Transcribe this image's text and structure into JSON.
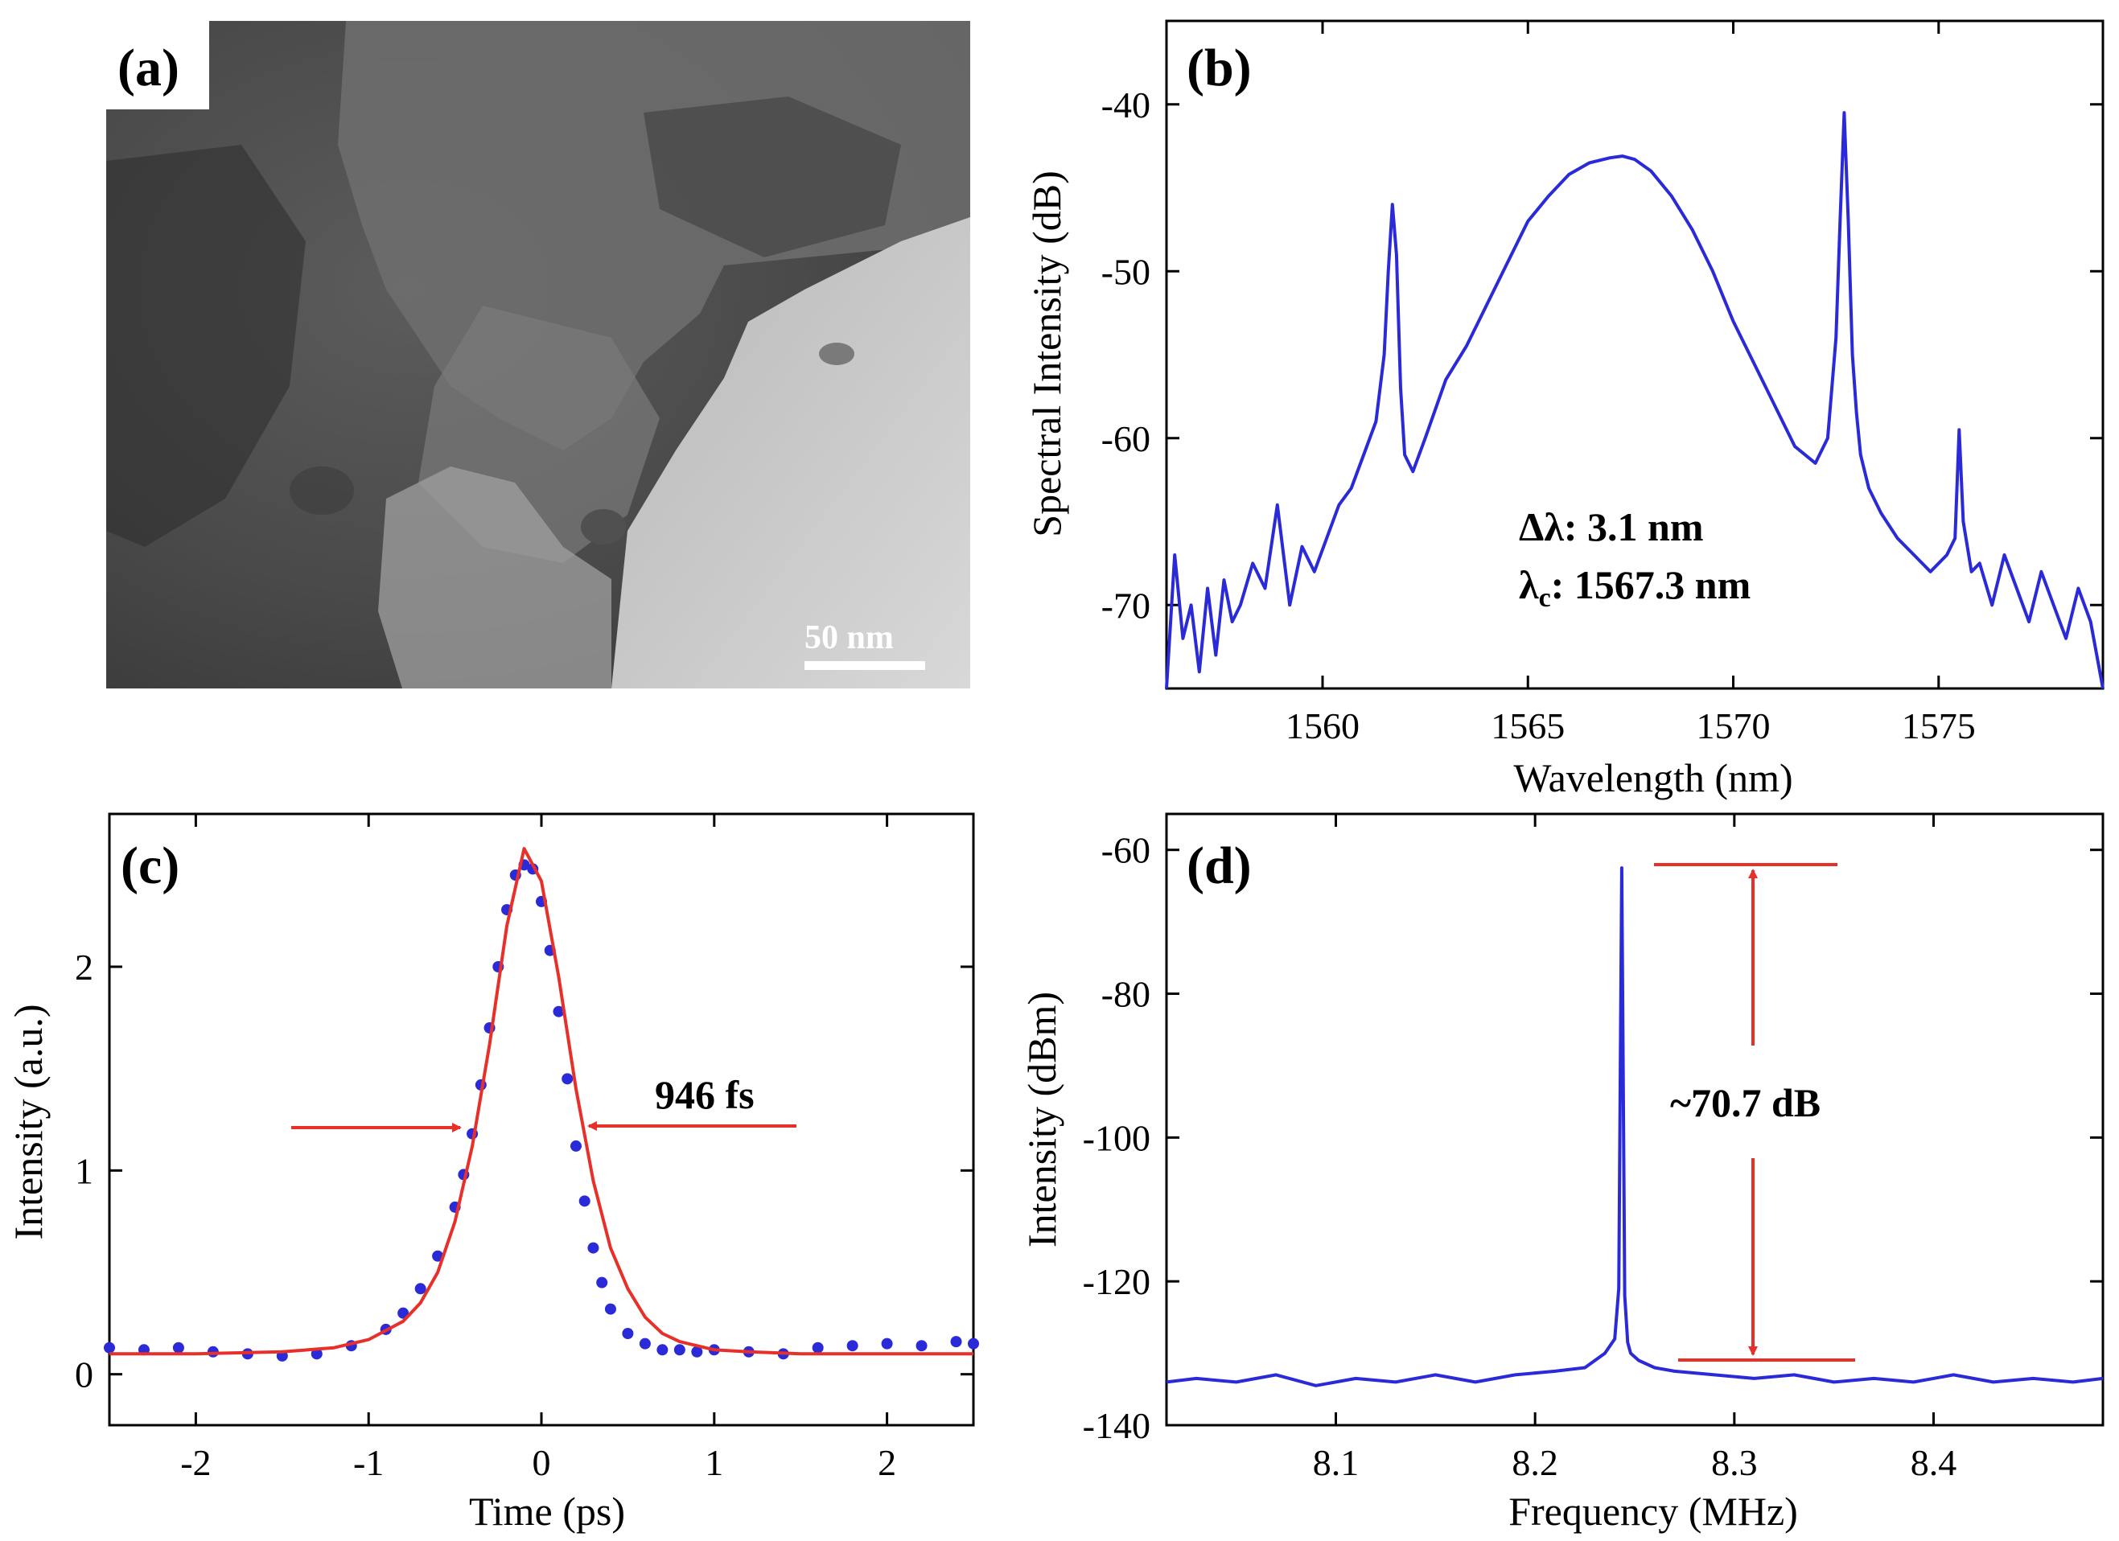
{
  "panels": {
    "a": {
      "label": "(a)",
      "scale_bar_label": "50 nm"
    },
    "b": {
      "label": "(b)",
      "annotation_line1": "Δλ: 3.1 nm",
      "annotation_line2_symbol": "λ",
      "annotation_line2_sub": "c",
      "annotation_line2_rest": ": 1567.3 nm"
    },
    "c": {
      "label": "(c)",
      "annotation": "946 fs"
    },
    "d": {
      "label": "(d)",
      "annotation": "~70.7 dB"
    }
  },
  "colors": {
    "data_blue": "#2a2ad8",
    "fit_red": "#e8302a",
    "arrow_red": "#e8302a",
    "axis": "#000000"
  },
  "chart_data": [
    {
      "id": "b",
      "type": "line",
      "title": "",
      "xlabel": "Wavelength (nm)",
      "ylabel": "Spectral Intensity (dB)",
      "xlim": [
        1556.2,
        1579
      ],
      "ylim": [
        -75,
        -35
      ],
      "xticks": [
        1560,
        1565,
        1570,
        1575
      ],
      "xtick_labels": [
        "1560",
        "1565",
        "1570",
        "1575"
      ],
      "yticks": [
        -40,
        -50,
        -60,
        -70
      ],
      "ytick_labels": [
        "-40",
        "-50",
        "-60",
        "-70"
      ],
      "series": [
        {
          "name": "spectrum",
          "x": [
            1556.2,
            1556.4,
            1556.6,
            1556.8,
            1557.0,
            1557.2,
            1557.4,
            1557.6,
            1557.8,
            1558.0,
            1558.3,
            1558.6,
            1558.9,
            1559.2,
            1559.5,
            1559.8,
            1560.1,
            1560.4,
            1560.7,
            1561.0,
            1561.3,
            1561.5,
            1561.6,
            1561.7,
            1561.8,
            1561.9,
            1562.0,
            1562.2,
            1562.5,
            1563.0,
            1563.5,
            1564.0,
            1564.5,
            1565.0,
            1565.5,
            1566.0,
            1566.5,
            1567.0,
            1567.3,
            1567.6,
            1568.0,
            1568.5,
            1569.0,
            1569.5,
            1570.0,
            1570.5,
            1571.0,
            1571.5,
            1572.0,
            1572.3,
            1572.5,
            1572.6,
            1572.7,
            1572.8,
            1572.9,
            1573.0,
            1573.1,
            1573.3,
            1573.6,
            1574.0,
            1574.4,
            1574.8,
            1575.2,
            1575.4,
            1575.5,
            1575.6,
            1575.8,
            1576.0,
            1576.3,
            1576.6,
            1576.9,
            1577.2,
            1577.5,
            1577.8,
            1578.1,
            1578.4,
            1578.7,
            1579.0
          ],
          "y": [
            -75,
            -67,
            -72,
            -70,
            -74,
            -69,
            -73,
            -68.5,
            -71,
            -70,
            -67.5,
            -69,
            -64,
            -70,
            -66.5,
            -68,
            -66,
            -64,
            -63,
            -61,
            -59,
            -55,
            -50,
            -46,
            -49,
            -57,
            -61,
            -62,
            -60,
            -56.5,
            -54.5,
            -52,
            -49.5,
            -47,
            -45.5,
            -44.2,
            -43.5,
            -43.2,
            -43.1,
            -43.3,
            -44,
            -45.5,
            -47.5,
            -50,
            -53,
            -55.5,
            -58,
            -60.5,
            -61.5,
            -60,
            -54,
            -47,
            -40.5,
            -47,
            -55,
            -58.5,
            -61,
            -63,
            -64.5,
            -66,
            -67,
            -68,
            -67,
            -66,
            -59.5,
            -65,
            -68,
            -67.5,
            -70,
            -67,
            -69,
            -71,
            -68,
            -70,
            -72,
            -69,
            -71,
            -75
          ]
        }
      ]
    },
    {
      "id": "c",
      "type": "line",
      "title": "",
      "xlabel": "Time (ps)",
      "ylabel": "Intensity (a.u.)",
      "xlim": [
        -2.5,
        2.5
      ],
      "ylim": [
        -0.25,
        2.75
      ],
      "xticks": [
        -2,
        -1,
        0,
        1,
        2
      ],
      "xtick_labels": [
        "-2",
        "-1",
        "0",
        "1",
        "2"
      ],
      "yticks": [
        0,
        1,
        2
      ],
      "ytick_labels": [
        "0",
        "1",
        "2"
      ],
      "series": [
        {
          "name": "measured",
          "style": "dots",
          "x": [
            -2.5,
            -2.3,
            -2.1,
            -1.9,
            -1.7,
            -1.5,
            -1.3,
            -1.1,
            -0.9,
            -0.8,
            -0.7,
            -0.6,
            -0.5,
            -0.45,
            -0.4,
            -0.35,
            -0.3,
            -0.25,
            -0.2,
            -0.15,
            -0.1,
            -0.05,
            0.0,
            0.05,
            0.1,
            0.15,
            0.2,
            0.25,
            0.3,
            0.35,
            0.4,
            0.5,
            0.6,
            0.7,
            0.8,
            0.9,
            1.0,
            1.2,
            1.4,
            1.6,
            1.8,
            2.0,
            2.2,
            2.4,
            2.5
          ],
          "y": [
            0.13,
            0.12,
            0.13,
            0.11,
            0.1,
            0.09,
            0.1,
            0.14,
            0.22,
            0.3,
            0.42,
            0.58,
            0.82,
            0.98,
            1.18,
            1.42,
            1.7,
            2.0,
            2.28,
            2.45,
            2.5,
            2.48,
            2.32,
            2.08,
            1.78,
            1.45,
            1.12,
            0.85,
            0.62,
            0.45,
            0.32,
            0.2,
            0.15,
            0.12,
            0.12,
            0.11,
            0.12,
            0.11,
            0.1,
            0.13,
            0.14,
            0.15,
            0.14,
            0.16,
            0.15
          ]
        },
        {
          "name": "fit",
          "style": "line",
          "x": [
            -2.5,
            -2.0,
            -1.5,
            -1.2,
            -1.0,
            -0.8,
            -0.7,
            -0.6,
            -0.5,
            -0.4,
            -0.3,
            -0.2,
            -0.1,
            0.0,
            0.1,
            0.2,
            0.3,
            0.4,
            0.5,
            0.6,
            0.7,
            0.8,
            1.0,
            1.2,
            1.5,
            2.0,
            2.5
          ],
          "y": [
            0.1,
            0.1,
            0.11,
            0.13,
            0.17,
            0.26,
            0.35,
            0.5,
            0.75,
            1.12,
            1.62,
            2.2,
            2.58,
            2.42,
            1.95,
            1.4,
            0.95,
            0.62,
            0.42,
            0.28,
            0.2,
            0.16,
            0.12,
            0.11,
            0.1,
            0.1,
            0.1
          ]
        }
      ]
    },
    {
      "id": "d",
      "type": "line",
      "title": "",
      "xlabel": "Frequency (MHz)",
      "ylabel": "Intensity (dBm)",
      "xlim": [
        8.015,
        8.485
      ],
      "ylim": [
        -140,
        -55
      ],
      "xticks": [
        8.1,
        8.2,
        8.3,
        8.4
      ],
      "xtick_labels": [
        "8.1",
        "8.2",
        "8.3",
        "8.4"
      ],
      "yticks": [
        -60,
        -80,
        -100,
        -120,
        -140
      ],
      "ytick_labels": [
        "-60",
        "-80",
        "-100",
        "-120",
        "-140"
      ],
      "series": [
        {
          "name": "RF spectrum",
          "x": [
            8.015,
            8.03,
            8.05,
            8.07,
            8.09,
            8.11,
            8.13,
            8.15,
            8.17,
            8.19,
            8.21,
            8.225,
            8.235,
            8.24,
            8.242,
            8.2435,
            8.245,
            8.2465,
            8.248,
            8.252,
            8.26,
            8.27,
            8.29,
            8.31,
            8.33,
            8.35,
            8.37,
            8.39,
            8.41,
            8.43,
            8.45,
            8.47,
            8.485
          ],
          "y": [
            -134,
            -133.5,
            -134,
            -133,
            -134.5,
            -133.5,
            -134,
            -133,
            -134,
            -133,
            -132.5,
            -132,
            -130,
            -128,
            -121,
            -62.5,
            -122,
            -128.5,
            -130,
            -131,
            -132,
            -132.5,
            -133,
            -133.5,
            -133,
            -134,
            -133.5,
            -134,
            -133,
            -134,
            -133.5,
            -134,
            -133.5
          ]
        }
      ]
    }
  ]
}
